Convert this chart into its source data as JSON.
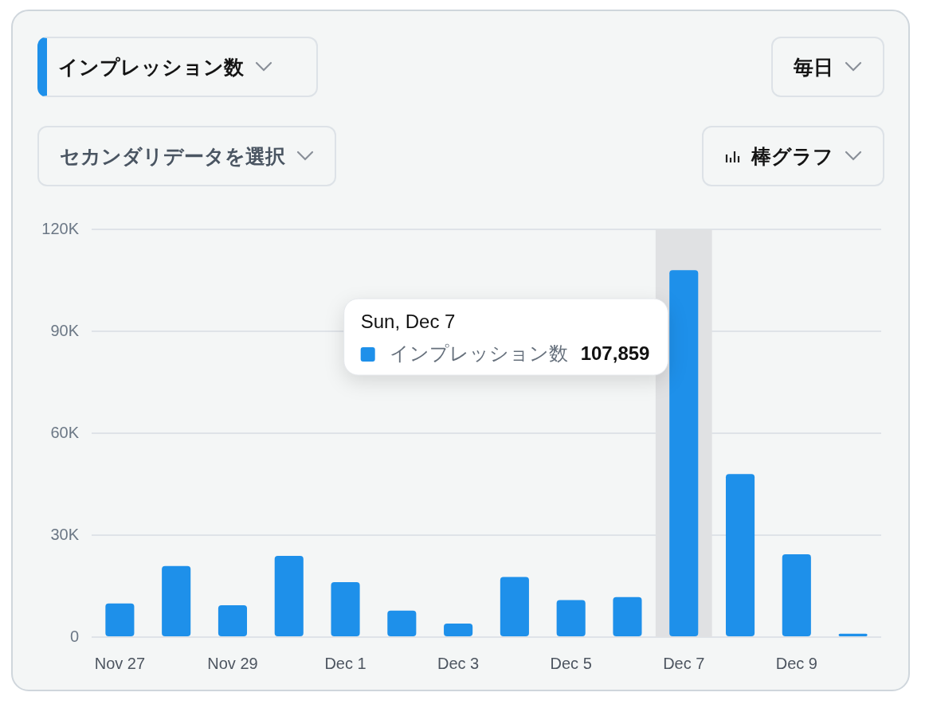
{
  "chart_data": {
    "type": "bar",
    "categories": [
      "Nov 27",
      null,
      "Nov 29",
      null,
      "Dec 1",
      null,
      "Dec 3",
      null,
      "Dec 5",
      null,
      "Dec 7",
      null,
      "Dec 9",
      null
    ],
    "series": [
      {
        "name": "インプレッション数",
        "color": "#1e90ea",
        "values": [
          9900,
          20900,
          9400,
          23900,
          16200,
          7800,
          4000,
          17700,
          10900,
          11800,
          108000,
          48000,
          24400,
          1000
        ]
      }
    ],
    "ylim": [
      0,
      120000
    ],
    "yticks": [
      0,
      {
        "value": 30000,
        "label": "30K"
      },
      {
        "value": 60000,
        "label": "60K"
      },
      {
        "value": 90000,
        "label": "90K"
      },
      {
        "value": 120000,
        "label": "120K"
      }
    ],
    "grid": "y",
    "legend": "top",
    "bands": [
      {
        "axis": "x",
        "from": "Dec 7",
        "to": "Dec 7",
        "color": "#e0e1e3"
      }
    ],
    "annotations": [
      "インプレッション数",
      "毎日",
      "セカンダリデータを選択",
      "棒グラフ",
      "Sun, Dec 7",
      "107,859"
    ]
  }
}
